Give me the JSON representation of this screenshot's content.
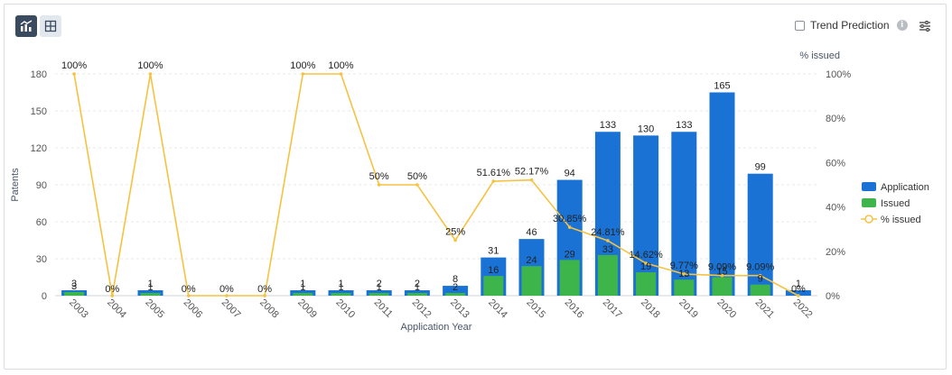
{
  "toolbar": {
    "chart_view_icon": "chart-view-icon",
    "table_view_icon": "table-view-icon",
    "trend_prediction_label": "Trend Prediction",
    "info_icon": "info-icon",
    "settings_icon": "settings-icon"
  },
  "colors": {
    "application": "#1a73d4",
    "issued": "#3db54a",
    "pct_line": "#f5c242",
    "active_button": "#3a4a5f",
    "inactive_button": "#e3e8ef"
  },
  "chart_data": {
    "type": "bar",
    "xlabel": "Application Year",
    "ylabel": "Patents",
    "y2label": "% issued",
    "ylim": [
      0,
      180
    ],
    "y_ticks": [
      0,
      30,
      60,
      90,
      120,
      150,
      180
    ],
    "y2lim": [
      0,
      100
    ],
    "y2_ticks": [
      "0%",
      "20%",
      "40%",
      "60%",
      "80%",
      "100%"
    ],
    "grid": true,
    "legend_position": "right",
    "categories": [
      "2003",
      "2004",
      "2005",
      "2006",
      "2007",
      "2008",
      "2009",
      "2010",
      "2011",
      "2012",
      "2013",
      "2014",
      "2015",
      "2016",
      "2017",
      "2018",
      "2019",
      "2020",
      "2021",
      "2022"
    ],
    "series": [
      {
        "name": "Application",
        "kind": "bar",
        "values": [
          3,
          0,
          1,
          0,
          0,
          0,
          1,
          1,
          2,
          2,
          8,
          31,
          46,
          94,
          133,
          130,
          133,
          165,
          99,
          1
        ],
        "labels": [
          "3",
          "",
          "1",
          "",
          "",
          "",
          "1",
          "1",
          "2",
          "2",
          "8",
          "31",
          "46",
          "94",
          "133",
          "130",
          "133",
          "165",
          "99",
          "1"
        ]
      },
      {
        "name": "Issued",
        "kind": "bar",
        "values": [
          3,
          0,
          1,
          0,
          0,
          0,
          1,
          1,
          1,
          1,
          2,
          16,
          24,
          29,
          33,
          19,
          13,
          15,
          9,
          0
        ],
        "labels": [
          "3",
          "",
          "1",
          "",
          "",
          "",
          "1",
          "1",
          "1",
          "1",
          "2",
          "16",
          "24",
          "29",
          "33",
          "19",
          "13",
          "15",
          "9",
          ""
        ]
      },
      {
        "name": "% issued",
        "kind": "line",
        "axis": "right",
        "values": [
          100,
          0,
          100,
          0,
          0,
          0,
          100,
          100,
          50,
          50,
          25,
          51.61,
          52.17,
          30.85,
          24.81,
          14.62,
          9.77,
          9.09,
          9.09,
          0
        ],
        "labels": [
          "100%",
          "0%",
          "100%",
          "0%",
          "0%",
          "0%",
          "100%",
          "100%",
          "50%",
          "50%",
          "25%",
          "51.61%",
          "52.17%",
          "30.85%",
          "24.81%",
          "14.62%",
          "9.77%",
          "9.09%",
          "9.09%",
          "0%"
        ]
      }
    ]
  }
}
